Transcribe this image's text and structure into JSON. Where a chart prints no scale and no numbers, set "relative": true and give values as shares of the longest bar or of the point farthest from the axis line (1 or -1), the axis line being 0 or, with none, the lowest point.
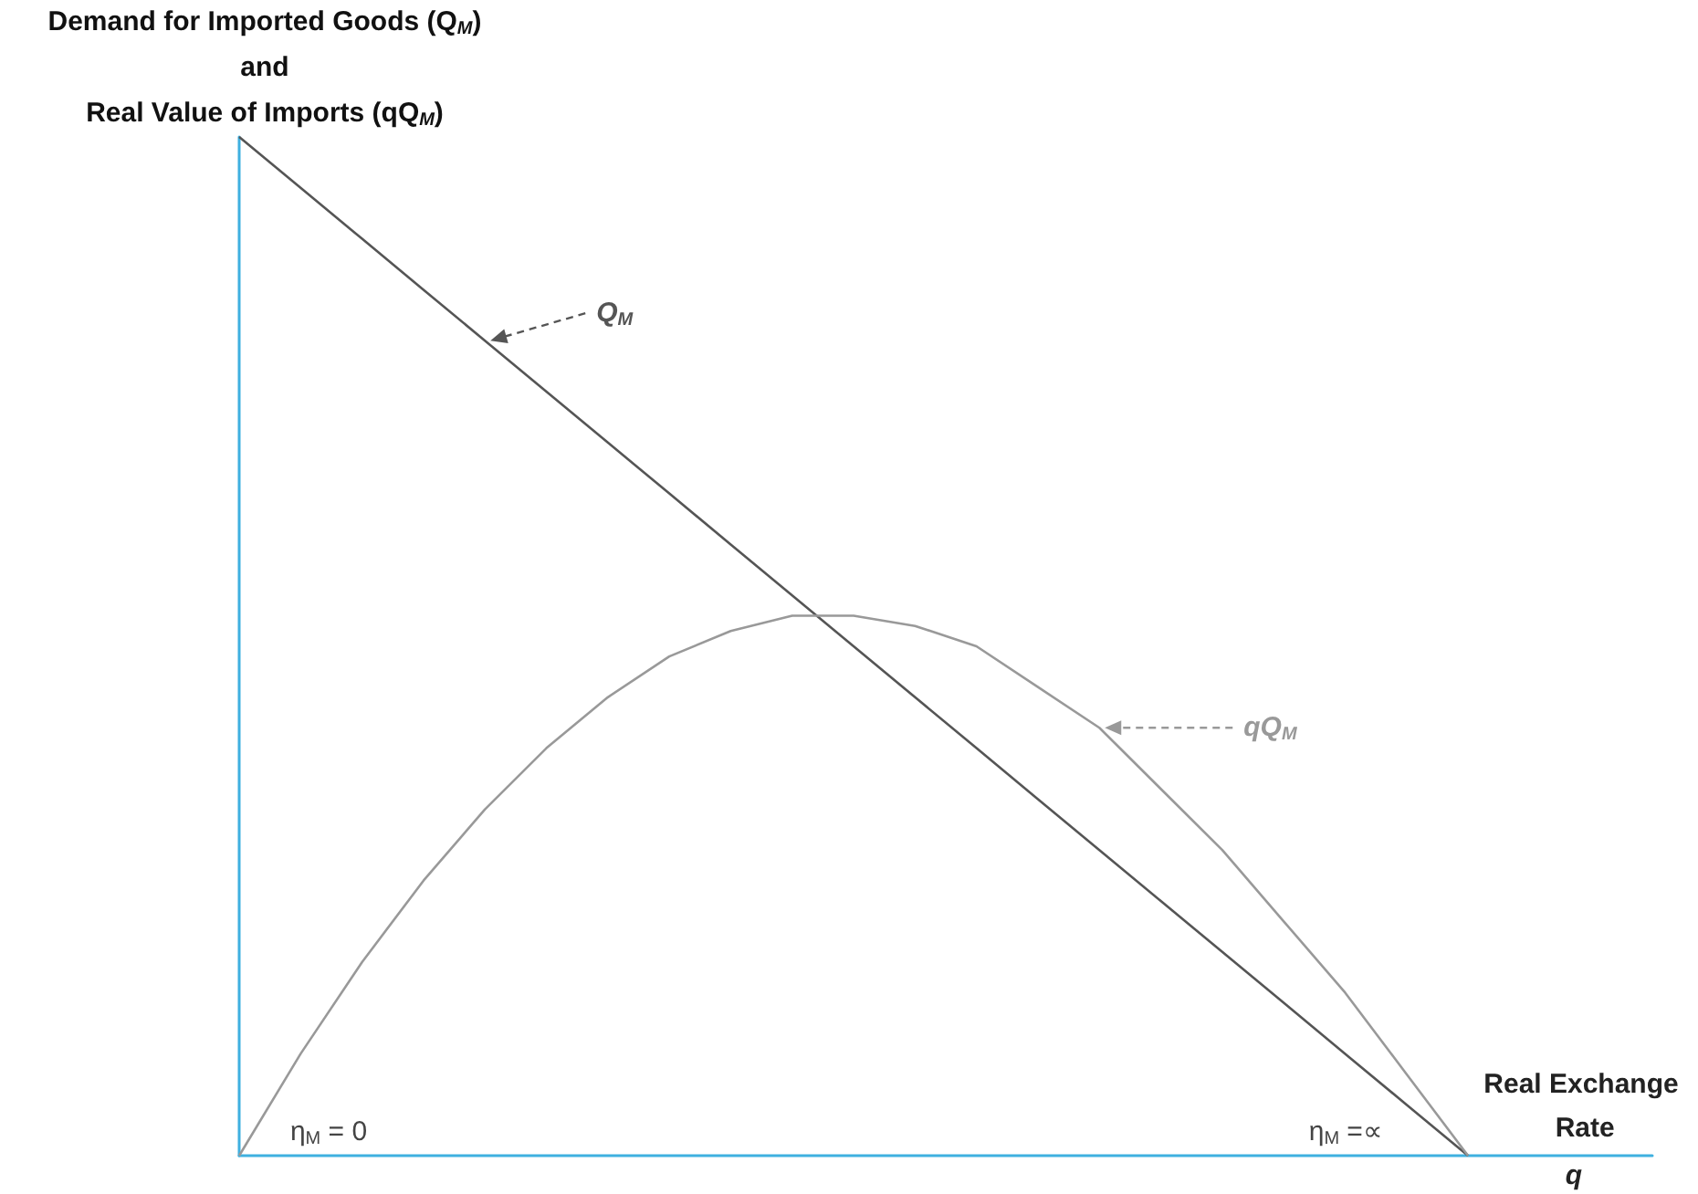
{
  "chart_data": {
    "type": "line",
    "relative": true,
    "marker": "none",
    "grid": false,
    "legend": "top",
    "ylabel": "Demand for Imported Goods (Q$_{M}$)\nand\nReal Value of Imports (qQ$_{M}$)",
    "xlabel": "Real Exchange Rate",
    "annotations": [
      "q",
      "η$_{M}$ = 0",
      "η$_{M}$ =∝"
    ],
    "categories": [
      null,
      null,
      null,
      null,
      null,
      null,
      null,
      null,
      null,
      null,
      null,
      null,
      null,
      null,
      null,
      null,
      null,
      null,
      null,
      null,
      null,
      null,
      null,
      null
    ],
    "series": [
      {
        "name": "Q$_{M}$",
        "color": "#555555",
        "values": [
          1,
          0.95,
          0.9,
          0.85,
          0.8,
          0.75,
          0.7,
          0.65,
          0.6,
          0.55,
          0.5,
          0.45,
          0.4,
          0.35,
          0.3,
          0.25,
          0.2,
          0.15,
          0.1,
          0.05,
          0,
          null,
          null,
          null
        ]
      },
      {
        "name": "qQ$_{M}$",
        "color": "#999999",
        "values": [
          0,
          0.1,
          0.19,
          0.27,
          0.34,
          0.4,
          0.45,
          0.49,
          0.515,
          0.53,
          0.53,
          0.52,
          0.5,
          0.46,
          0.42,
          0.36,
          0.3,
          0.23,
          0.16,
          0.08,
          0,
          null,
          null,
          null
        ]
      }
    ]
  }
}
